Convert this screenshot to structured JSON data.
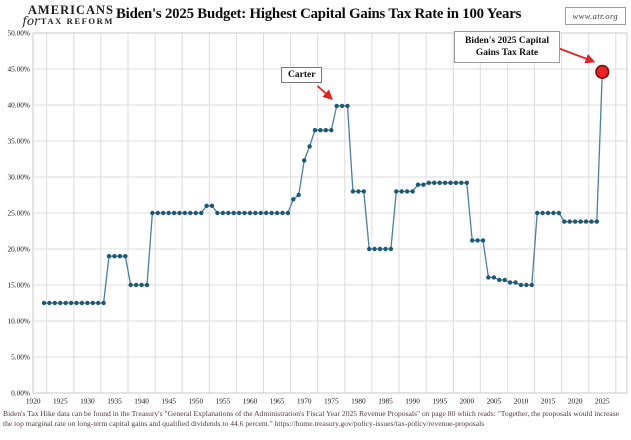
{
  "header": {
    "logo": {
      "line1": "AMERICANS",
      "script": "for",
      "line2": "TAX REFORM"
    },
    "url": "www.atr.org"
  },
  "chart_data": {
    "type": "line",
    "title": "Biden's 2025 Budget: Highest Capital Gains Tax Rate in 100 Years",
    "xlabel": "",
    "ylabel": "",
    "ylim": [
      0,
      50
    ],
    "xlim": [
      1920,
      2030
    ],
    "grid": true,
    "legend": "none",
    "y_ticks": [
      "0.00%",
      "5.00%",
      "10.00%",
      "15.00%",
      "20.00%",
      "25.00%",
      "30.00%",
      "35.00%",
      "40.00%",
      "45.00%",
      "50.00%"
    ],
    "x_ticks": [
      1920,
      1925,
      1930,
      1935,
      1940,
      1945,
      1950,
      1955,
      1960,
      1965,
      1970,
      1975,
      1980,
      1985,
      1990,
      1995,
      2000,
      2005,
      2010,
      2015,
      2020,
      2025
    ],
    "line_color": "#4c7f9f",
    "dot_color": "#1d5977",
    "highlight_color": "#ee2222",
    "highlight_ring": "#7e1010",
    "arrow_color": "#e02424",
    "points": [
      [
        1922,
        12.5
      ],
      [
        1923,
        12.5
      ],
      [
        1924,
        12.5
      ],
      [
        1925,
        12.5
      ],
      [
        1926,
        12.5
      ],
      [
        1927,
        12.5
      ],
      [
        1928,
        12.5
      ],
      [
        1929,
        12.5
      ],
      [
        1930,
        12.5
      ],
      [
        1931,
        12.5
      ],
      [
        1932,
        12.5
      ],
      [
        1933,
        12.5
      ],
      [
        1934,
        19
      ],
      [
        1935,
        19
      ],
      [
        1936,
        19
      ],
      [
        1937,
        19
      ],
      [
        1938,
        15
      ],
      [
        1939,
        15
      ],
      [
        1940,
        15
      ],
      [
        1941,
        15
      ],
      [
        1942,
        25
      ],
      [
        1943,
        25
      ],
      [
        1944,
        25
      ],
      [
        1945,
        25
      ],
      [
        1946,
        25
      ],
      [
        1947,
        25
      ],
      [
        1948,
        25
      ],
      [
        1949,
        25
      ],
      [
        1950,
        25
      ],
      [
        1951,
        25
      ],
      [
        1952,
        26
      ],
      [
        1953,
        26
      ],
      [
        1954,
        25
      ],
      [
        1955,
        25
      ],
      [
        1956,
        25
      ],
      [
        1957,
        25
      ],
      [
        1958,
        25
      ],
      [
        1959,
        25
      ],
      [
        1960,
        25
      ],
      [
        1961,
        25
      ],
      [
        1962,
        25
      ],
      [
        1963,
        25
      ],
      [
        1964,
        25
      ],
      [
        1965,
        25
      ],
      [
        1966,
        25
      ],
      [
        1967,
        25
      ],
      [
        1968,
        26.9
      ],
      [
        1969,
        27.5
      ],
      [
        1970,
        32.3
      ],
      [
        1971,
        34.25
      ],
      [
        1972,
        36.5
      ],
      [
        1973,
        36.5
      ],
      [
        1974,
        36.5
      ],
      [
        1975,
        36.5
      ],
      [
        1976,
        39.875
      ],
      [
        1977,
        39.875
      ],
      [
        1978,
        39.875
      ],
      [
        1979,
        28
      ],
      [
        1980,
        28
      ],
      [
        1981,
        28
      ],
      [
        1982,
        20
      ],
      [
        1983,
        20
      ],
      [
        1984,
        20
      ],
      [
        1985,
        20
      ],
      [
        1986,
        20
      ],
      [
        1987,
        28
      ],
      [
        1988,
        28
      ],
      [
        1989,
        28
      ],
      [
        1990,
        28
      ],
      [
        1991,
        28.93
      ],
      [
        1992,
        28.93
      ],
      [
        1993,
        29.19
      ],
      [
        1994,
        29.19
      ],
      [
        1995,
        29.19
      ],
      [
        1996,
        29.19
      ],
      [
        1997,
        29.19
      ],
      [
        1998,
        29.19
      ],
      [
        1999,
        29.19
      ],
      [
        2000,
        29.19
      ],
      [
        2001,
        21.19
      ],
      [
        2002,
        21.19
      ],
      [
        2003,
        21.19
      ],
      [
        2004,
        16.05
      ],
      [
        2005,
        16.05
      ],
      [
        2006,
        15.7
      ],
      [
        2007,
        15.7
      ],
      [
        2008,
        15.35
      ],
      [
        2009,
        15.35
      ],
      [
        2010,
        15
      ],
      [
        2011,
        15
      ],
      [
        2012,
        15
      ],
      [
        2013,
        25
      ],
      [
        2014,
        25
      ],
      [
        2015,
        25
      ],
      [
        2016,
        25
      ],
      [
        2017,
        25
      ],
      [
        2018,
        23.8
      ],
      [
        2019,
        23.8
      ],
      [
        2020,
        23.8
      ],
      [
        2021,
        23.8
      ],
      [
        2022,
        23.8
      ],
      [
        2023,
        23.8
      ],
      [
        2024,
        23.8
      ]
    ],
    "highlight_point": {
      "year": 2025,
      "value": 44.6
    },
    "annotations": [
      {
        "text": "Carter"
      },
      {
        "text": "Biden's 2025 Capital Gains Tax Rate",
        "lines": [
          "Biden's 2025 Capital",
          "Gains Tax Rate"
        ]
      }
    ]
  },
  "footer": {
    "note": "Biden's Tax Hike data can be found in the Treasury's \"General Explanations of the Administration's Fiscal Year 2025 Revenue Proposals\" on page 80 which reads: \"Together, the proposals would increase the top marginal rate on long-term capital gains and qualified dividends to 44.6 percent.\"  https://home.treasury.gov/policy-issues/tax-policy/revenue-proposals"
  }
}
